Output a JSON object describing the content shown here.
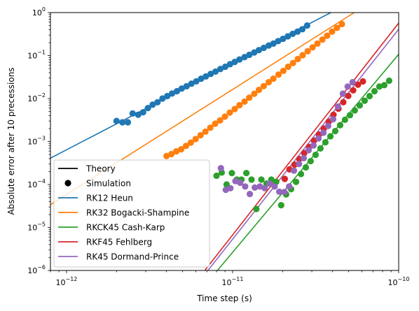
{
  "chart_data": {
    "type": "scatter",
    "xlabel": "Time step (s)",
    "ylabel": "Absolute error after 10 precessions",
    "xscale": "log",
    "yscale": "log",
    "xlim": [
      8e-13,
      1e-10
    ],
    "ylim": [
      1e-06,
      1
    ],
    "x_ticks": [
      {
        "value": 1e-12,
        "base": "10",
        "exp": "−12"
      },
      {
        "value": 1e-11,
        "base": "10",
        "exp": "−11"
      },
      {
        "value": 1e-10,
        "base": "10",
        "exp": "−10"
      }
    ],
    "y_ticks": [
      {
        "value": 1e-06,
        "base": "10",
        "exp": "−6"
      },
      {
        "value": 1e-05,
        "base": "10",
        "exp": "−5"
      },
      {
        "value": 0.0001,
        "base": "10",
        "exp": "−4"
      },
      {
        "value": 0.001,
        "base": "10",
        "exp": "−3"
      },
      {
        "value": 0.01,
        "base": "10",
        "exp": "−2"
      },
      {
        "value": 0.1,
        "base": "10",
        "exp": "−1"
      },
      {
        "value": 1,
        "base": "10",
        "exp": "0"
      }
    ],
    "legend": {
      "placement": "lower-left",
      "entries": [
        {
          "label": "Theory",
          "kind": "line",
          "color": "#000000"
        },
        {
          "label": "Simulation",
          "kind": "marker",
          "color": "#000000"
        },
        {
          "label": "RK12 Heun",
          "kind": "line",
          "color": "#1f77b4"
        },
        {
          "label": "RK32 Bogacki-Shampine",
          "kind": "line",
          "color": "#ff7f0e"
        },
        {
          "label": "RKCK45 Cash-Karp",
          "kind": "line",
          "color": "#2ca02c"
        },
        {
          "label": "RKF45 Fehlberg",
          "kind": "line",
          "color": "#d62728"
        },
        {
          "label": "RK45 Dormand-Prince",
          "kind": "line",
          "color": "#9467bd"
        }
      ]
    },
    "series": [
      {
        "name": "RK12 Heun",
        "color": "#1f77b4",
        "theory": [
          [
            8e-13,
            0.00041
          ],
          [
            3.9e-11,
            1.0
          ]
        ],
        "points": [
          [
            2e-12,
            0.003
          ],
          [
            2.17e-12,
            0.0028
          ],
          [
            2.34e-12,
            0.0028
          ],
          [
            2.5e-12,
            0.0045
          ],
          [
            2.7e-12,
            0.0042
          ],
          [
            2.89e-12,
            0.0048
          ],
          [
            3.09e-12,
            0.006
          ],
          [
            3.3e-12,
            0.0072
          ],
          [
            3.53e-12,
            0.0082
          ],
          [
            3.78e-12,
            0.01
          ],
          [
            4.04e-12,
            0.0114
          ],
          [
            4.32e-12,
            0.0131
          ],
          [
            4.62e-12,
            0.0148
          ],
          [
            4.94e-12,
            0.0171
          ],
          [
            5.28e-12,
            0.0193
          ],
          [
            5.65e-12,
            0.0222
          ],
          [
            6.04e-12,
            0.0251
          ],
          [
            6.46e-12,
            0.0289
          ],
          [
            6.9e-12,
            0.0327
          ],
          [
            7.38e-12,
            0.0375
          ],
          [
            7.89e-12,
            0.0424
          ],
          [
            8.44e-12,
            0.0486
          ],
          [
            9.03e-12,
            0.055
          ],
          [
            9.65e-12,
            0.063
          ],
          [
            1.03e-11,
            0.071
          ],
          [
            1.1e-11,
            0.081
          ],
          [
            1.18e-11,
            0.092
          ],
          [
            1.26e-11,
            0.104
          ],
          [
            1.35e-11,
            0.118
          ],
          [
            1.44e-11,
            0.134
          ],
          [
            1.54e-11,
            0.151
          ],
          [
            1.65e-11,
            0.171
          ],
          [
            1.76e-11,
            0.19
          ],
          [
            1.88e-11,
            0.217
          ],
          [
            2.01e-11,
            0.245
          ],
          [
            2.15e-11,
            0.28
          ],
          [
            2.3e-11,
            0.32
          ],
          [
            2.46e-11,
            0.36
          ],
          [
            2.63e-11,
            0.41
          ],
          [
            2.81e-11,
            0.5
          ]
        ]
      },
      {
        "name": "RK32 Bogacki-Shampine",
        "color": "#ff7f0e",
        "theory": [
          [
            8e-13,
            3.4e-05
          ],
          [
            5.4e-11,
            1.0
          ]
        ],
        "points": [
          [
            4e-12,
            0.00046
          ],
          [
            4.28e-12,
            0.00051
          ],
          [
            4.58e-12,
            0.00059
          ],
          [
            4.9e-12,
            0.00066
          ],
          [
            5.24e-12,
            0.00079
          ],
          [
            5.6e-12,
            0.00094
          ],
          [
            5.99e-12,
            0.00114
          ],
          [
            6.41e-12,
            0.0014
          ],
          [
            6.86e-12,
            0.0017
          ],
          [
            7.34e-12,
            0.0021
          ],
          [
            7.85e-12,
            0.0026
          ],
          [
            8.4e-12,
            0.0031
          ],
          [
            8.99e-12,
            0.0038
          ],
          [
            9.62e-12,
            0.0047
          ],
          [
            1.03e-11,
            0.0057
          ],
          [
            1.1e-11,
            0.007
          ],
          [
            1.18e-11,
            0.0085
          ],
          [
            1.26e-11,
            0.0105
          ],
          [
            1.35e-11,
            0.0129
          ],
          [
            1.44e-11,
            0.0159
          ],
          [
            1.54e-11,
            0.0195
          ],
          [
            1.65e-11,
            0.024
          ],
          [
            1.76e-11,
            0.029
          ],
          [
            1.89e-11,
            0.036
          ],
          [
            2.02e-11,
            0.044
          ],
          [
            2.16e-11,
            0.055
          ],
          [
            2.31e-11,
            0.067
          ],
          [
            2.47e-11,
            0.083
          ],
          [
            2.64e-11,
            0.102
          ],
          [
            2.83e-11,
            0.126
          ],
          [
            3.03e-11,
            0.155
          ],
          [
            3.24e-11,
            0.19
          ],
          [
            3.47e-11,
            0.235
          ],
          [
            3.71e-11,
            0.29
          ],
          [
            3.97e-11,
            0.36
          ],
          [
            4.25e-11,
            0.44
          ],
          [
            4.55e-11,
            0.54
          ]
        ]
      },
      {
        "name": "RKCK45 Cash-Karp",
        "color": "#2ca02c",
        "theory": [
          [
            8.1e-12,
            1e-06
          ],
          [
            1e-10,
            0.107
          ]
        ],
        "points": [
          [
            8e-12,
            0.00016
          ],
          [
            8.6e-12,
            0.00019
          ],
          [
            9.2e-12,
            0.0001
          ],
          [
            9.9e-12,
            0.000185
          ],
          [
            1.06e-11,
            0.00013
          ],
          [
            1.13e-11,
            0.00013
          ],
          [
            1.21e-11,
            0.000185
          ],
          [
            1.3e-11,
            0.00013
          ],
          [
            1.39e-11,
            2.7e-05
          ],
          [
            1.49e-11,
            0.00013
          ],
          [
            1.6e-11,
            0.000105
          ],
          [
            1.71e-11,
            0.00013
          ],
          [
            1.83e-11,
            0.000115
          ],
          [
            1.96e-11,
            3.3e-05
          ],
          [
            2.1e-11,
            5.9e-05
          ],
          [
            2.25e-11,
            7.8e-05
          ],
          [
            2.41e-11,
            0.000115
          ],
          [
            2.58e-11,
            0.000175
          ],
          [
            2.76e-11,
            0.00025
          ],
          [
            2.95e-11,
            0.00035
          ],
          [
            3.16e-11,
            0.00049
          ],
          [
            3.38e-11,
            0.00069
          ],
          [
            3.62e-11,
            0.00096
          ],
          [
            3.88e-11,
            0.00132
          ],
          [
            4.15e-11,
            0.00175
          ],
          [
            4.44e-11,
            0.0024
          ],
          [
            4.75e-11,
            0.0032
          ],
          [
            5.09e-11,
            0.0041
          ],
          [
            5.44e-11,
            0.0053
          ],
          [
            5.83e-11,
            0.0069
          ],
          [
            6.24e-11,
            0.0089
          ],
          [
            6.68e-11,
            0.0114
          ],
          [
            7.15e-11,
            0.0148
          ],
          [
            7.65e-11,
            0.019
          ],
          [
            8.19e-11,
            0.0205
          ],
          [
            8.76e-11,
            0.026
          ]
        ]
      },
      {
        "name": "RKF45 Fehlberg",
        "color": "#d62728",
        "theory": [
          [
            6.8e-12,
            1e-06
          ],
          [
            1e-10,
            0.57
          ]
        ],
        "points": [
          [
            2.06e-11,
            0.000135
          ],
          [
            2.2e-11,
            0.000225
          ],
          [
            2.36e-11,
            0.00029
          ],
          [
            2.52e-11,
            0.00039
          ],
          [
            2.7e-11,
            0.00054
          ],
          [
            2.89e-11,
            0.00075
          ],
          [
            3.09e-11,
            0.00105
          ],
          [
            3.31e-11,
            0.00145
          ],
          [
            3.54e-11,
            0.002
          ],
          [
            3.79e-11,
            0.0029
          ],
          [
            4.05e-11,
            0.0042
          ],
          [
            4.34e-11,
            0.0058
          ],
          [
            4.64e-11,
            0.0082
          ],
          [
            4.97e-11,
            0.0115
          ],
          [
            5.32e-11,
            0.0155
          ],
          [
            5.69e-11,
            0.021
          ],
          [
            6.09e-11,
            0.025
          ]
        ]
      },
      {
        "name": "RK45 Dormand-Prince",
        "color": "#9467bd",
        "theory": [
          [
            7.1e-12,
            1e-06
          ],
          [
            1e-10,
            0.41
          ]
        ],
        "points": [
          [
            8.5e-12,
            0.00024
          ],
          [
            9.1e-12,
            7.5e-05
          ],
          [
            9.7e-12,
            8.2e-05
          ],
          [
            1.04e-11,
            0.00012
          ],
          [
            1.11e-11,
            0.00011
          ],
          [
            1.19e-11,
            9e-05
          ],
          [
            1.27e-11,
            6e-05
          ],
          [
            1.36e-11,
            8.5e-05
          ],
          [
            1.46e-11,
            9e-05
          ],
          [
            1.56e-11,
            8.2e-05
          ],
          [
            1.67e-11,
            0.000105
          ],
          [
            1.79e-11,
            9e-05
          ],
          [
            1.91e-11,
            6.8e-05
          ],
          [
            2.05e-11,
            6.7e-05
          ],
          [
            2.19e-11,
            9e-05
          ],
          [
            2.34e-11,
            0.00021
          ],
          [
            2.51e-11,
            0.0003
          ],
          [
            2.68e-11,
            0.00041
          ],
          [
            2.87e-11,
            0.00063
          ],
          [
            3.07e-11,
            0.00081
          ],
          [
            3.29e-11,
            0.00118
          ],
          [
            3.52e-11,
            0.0016
          ],
          [
            3.76e-11,
            0.0023
          ],
          [
            4.03e-11,
            0.0033
          ],
          [
            4.31e-11,
            0.0065
          ],
          [
            4.61e-11,
            0.013
          ],
          [
            4.93e-11,
            0.019
          ],
          [
            5.28e-11,
            0.024
          ]
        ]
      }
    ]
  }
}
